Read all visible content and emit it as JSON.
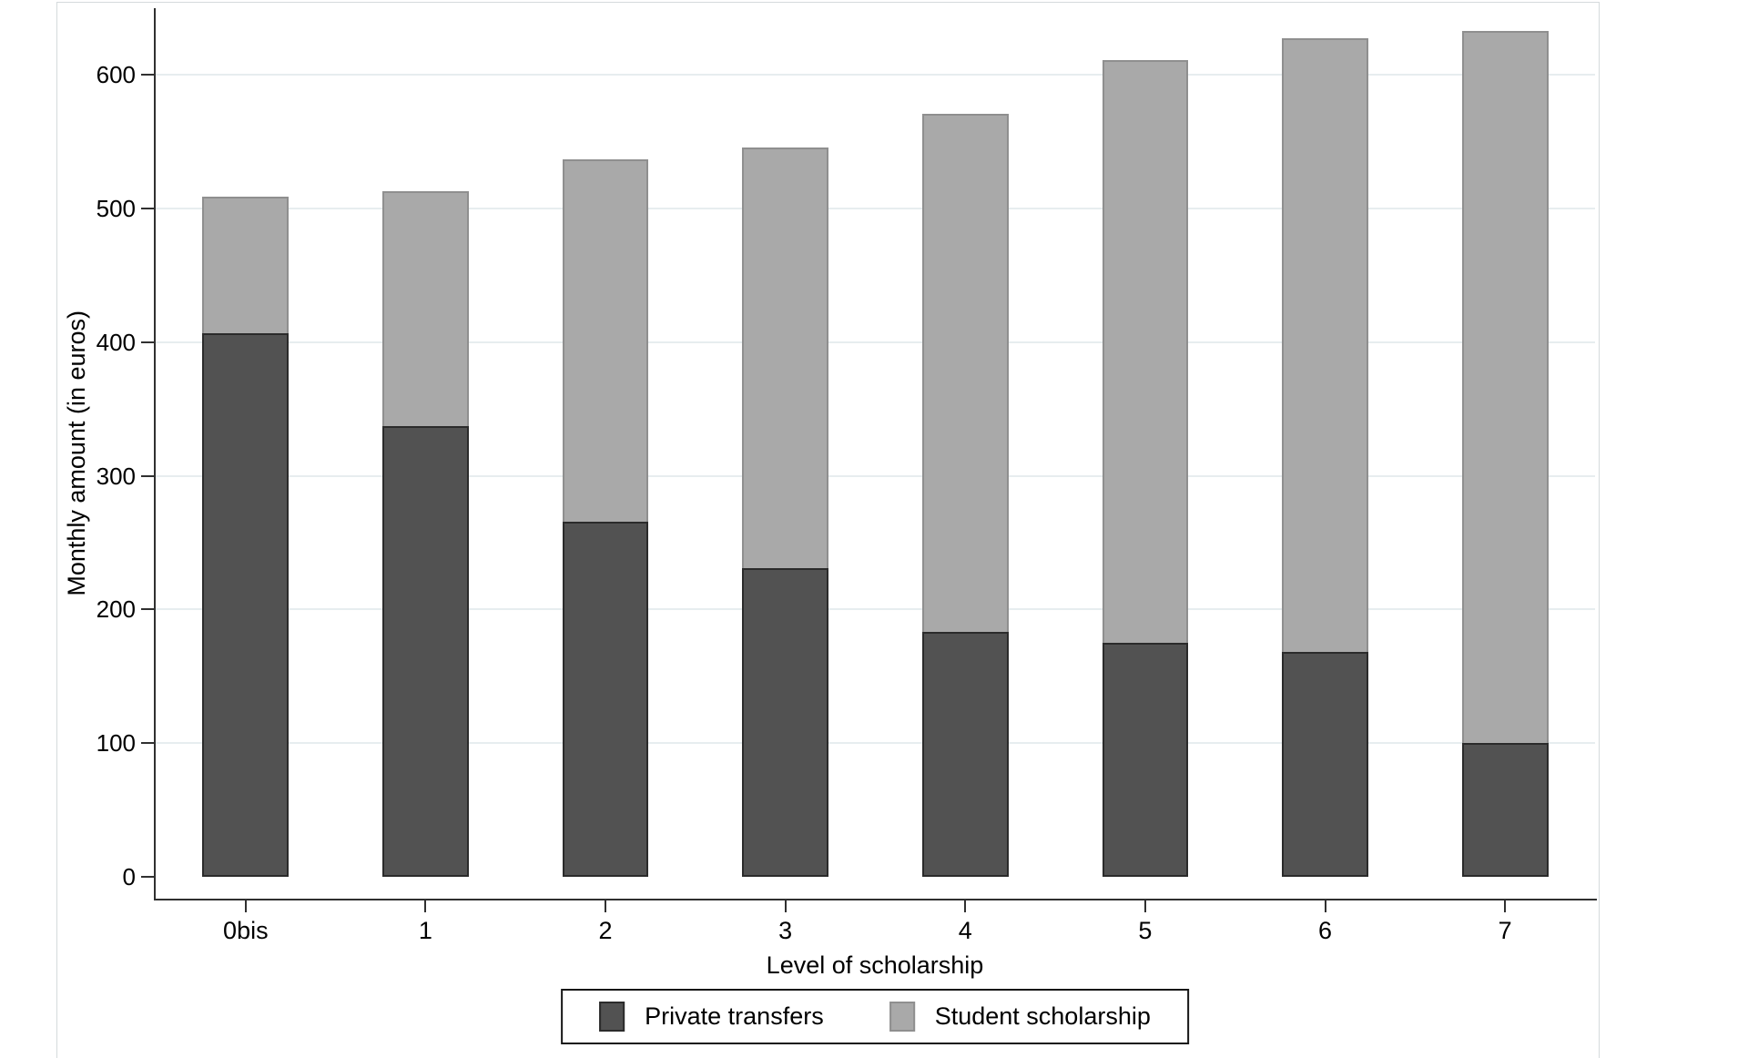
{
  "figure": {
    "background": "#ffffff",
    "window_border_color": "#d5dadc"
  },
  "chart_data": {
    "type": "bar",
    "stacked": true,
    "orientation": "vertical",
    "title": "",
    "xlabel": "Level of scholarship",
    "ylabel": "Monthly amount (in euros)",
    "categories": [
      "0bis",
      "1",
      "2",
      "3",
      "4",
      "5",
      "6",
      "7"
    ],
    "series": [
      {
        "name": "Private transfers",
        "color": "#525252",
        "border_color": "#2b2b2b",
        "values": [
          407,
          337,
          266,
          231,
          183,
          175,
          168,
          100
        ]
      },
      {
        "name": "Student scholarship",
        "color": "#a9a9a9",
        "border_color": "#8f8f8f",
        "values": [
          102,
          176,
          271,
          315,
          388,
          436,
          459,
          533
        ]
      }
    ],
    "stack_totals": [
      509,
      513,
      537,
      546,
      571,
      611,
      627,
      633
    ],
    "ylim": [
      0,
      650
    ],
    "yticks": [
      0,
      100,
      200,
      300,
      400,
      500,
      600
    ],
    "grid": "horizontal",
    "gridline_color": "#e7edef",
    "axis_color": "#303030",
    "text_color": "#000000",
    "legend_position": "bottom"
  }
}
